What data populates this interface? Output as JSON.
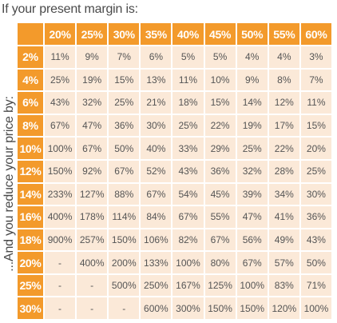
{
  "top_caption": "If your present margin is:",
  "side_caption": "...And you reduce your price by:",
  "margins": [
    "20%",
    "25%",
    "30%",
    "35%",
    "40%",
    "45%",
    "50%",
    "55%",
    "60%"
  ],
  "price_reductions": [
    "2%",
    "4%",
    "6%",
    "8%",
    "10%",
    "12%",
    "14%",
    "16%",
    "18%",
    "20%",
    "25%",
    "30%"
  ],
  "table_cells": [
    [
      "11%",
      "9%",
      "7%",
      "6%",
      "5%",
      "5%",
      "4%",
      "4%",
      "3%"
    ],
    [
      "25%",
      "19%",
      "15%",
      "13%",
      "11%",
      "10%",
      "9%",
      "8%",
      "7%"
    ],
    [
      "43%",
      "32%",
      "25%",
      "21%",
      "18%",
      "15%",
      "14%",
      "12%",
      "11%"
    ],
    [
      "67%",
      "47%",
      "36%",
      "30%",
      "25%",
      "22%",
      "19%",
      "17%",
      "15%"
    ],
    [
      "100%",
      "67%",
      "50%",
      "40%",
      "33%",
      "29%",
      "25%",
      "22%",
      "20%"
    ],
    [
      "150%",
      "92%",
      "67%",
      "52%",
      "43%",
      "36%",
      "32%",
      "28%",
      "25%"
    ],
    [
      "233%",
      "127%",
      "88%",
      "67%",
      "54%",
      "45%",
      "39%",
      "34%",
      "30%"
    ],
    [
      "400%",
      "178%",
      "114%",
      "84%",
      "67%",
      "55%",
      "47%",
      "41%",
      "36%"
    ],
    [
      "900%",
      "257%",
      "150%",
      "106%",
      "82%",
      "67%",
      "56%",
      "49%",
      "43%"
    ],
    [
      "-",
      "400%",
      "200%",
      "133%",
      "100%",
      "80%",
      "67%",
      "57%",
      "50%"
    ],
    [
      "-",
      "-",
      "500%",
      "250%",
      "167%",
      "125%",
      "100%",
      "83%",
      "71%"
    ],
    [
      "-",
      "-",
      "-",
      "600%",
      "300%",
      "150%",
      "150%",
      "120%",
      "100%"
    ]
  ],
  "colors": {
    "header_orange": "#f39a2b",
    "cell_peach": "#fbe9d8",
    "header_text": "#ffffff",
    "cell_text": "#555555",
    "caption_text": "#4a4a4a"
  }
}
